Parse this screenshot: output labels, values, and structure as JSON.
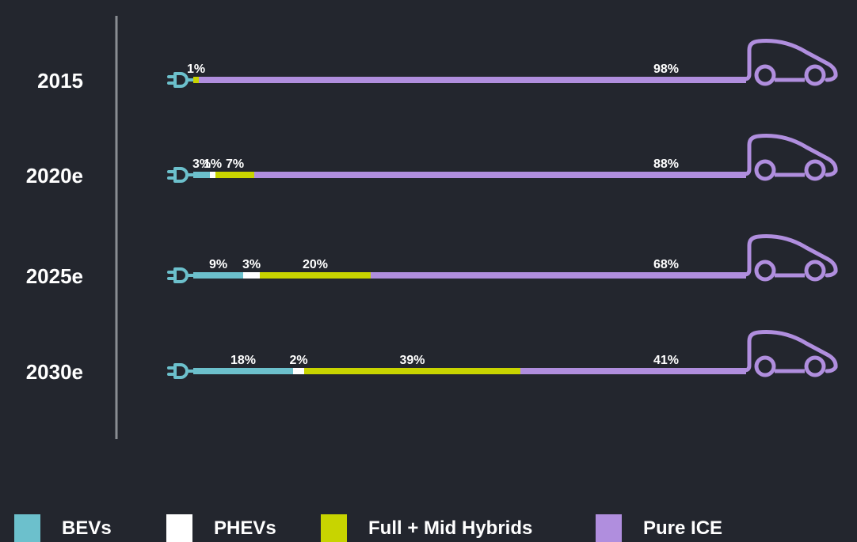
{
  "colors": {
    "background": "#23262e",
    "bevs": "#6cc0cc",
    "phevs": "#ffffff",
    "hybrids": "#c8d400",
    "ice": "#b08ede",
    "divider": "#8a8d93"
  },
  "icons": {
    "start": "plug-icon",
    "end": "car-icon"
  },
  "chart_data": {
    "type": "bar",
    "orientation": "horizontal",
    "stacked": true,
    "categories": [
      "2015",
      "2020e",
      "2025e",
      "2030e"
    ],
    "series": [
      {
        "name": "BEVs",
        "values": [
          0,
          3,
          9,
          18
        ],
        "labels": [
          "",
          "3%",
          "9%",
          "18%"
        ]
      },
      {
        "name": "PHEVs",
        "values": [
          0,
          1,
          3,
          2
        ],
        "labels": [
          "",
          "1%",
          "3%",
          "2%"
        ]
      },
      {
        "name": "Full + Mid Hybrids",
        "values": [
          1,
          7,
          20,
          39
        ],
        "labels": [
          "1%",
          "7%",
          "20%",
          "39%"
        ]
      },
      {
        "name": "Pure ICE",
        "values": [
          98,
          88,
          68,
          41
        ],
        "labels": [
          "98%",
          "88%",
          "68%",
          "41%"
        ]
      }
    ],
    "xlim": [
      0,
      100
    ],
    "legend": "bottom",
    "grid": false
  }
}
